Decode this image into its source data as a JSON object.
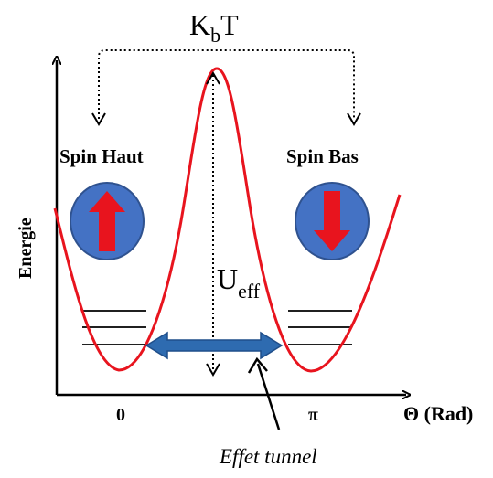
{
  "labels": {
    "kbt_main": "K",
    "kbt_sub": "b",
    "kbt_tail": "T",
    "y_axis": "Energie",
    "spin_up": "Spin Haut",
    "spin_down": "Spin Bas",
    "ueff_main": "U",
    "ueff_sub": "eff",
    "tick_zero": "0",
    "tick_pi": "π",
    "x_axis": "Θ (Rad)",
    "tunnel": "Effet tunnel"
  },
  "colors": {
    "curve": "#e8141e",
    "arrow_red": "#e8141e",
    "circle_fill": "#4472c4",
    "circle_stroke": "#2f528f",
    "tunnel_arrow": "#2e6bb0",
    "axis": "#000000"
  },
  "icons": {
    "spin_up": "red-up-arrow-icon",
    "spin_down": "red-down-arrow-icon"
  }
}
